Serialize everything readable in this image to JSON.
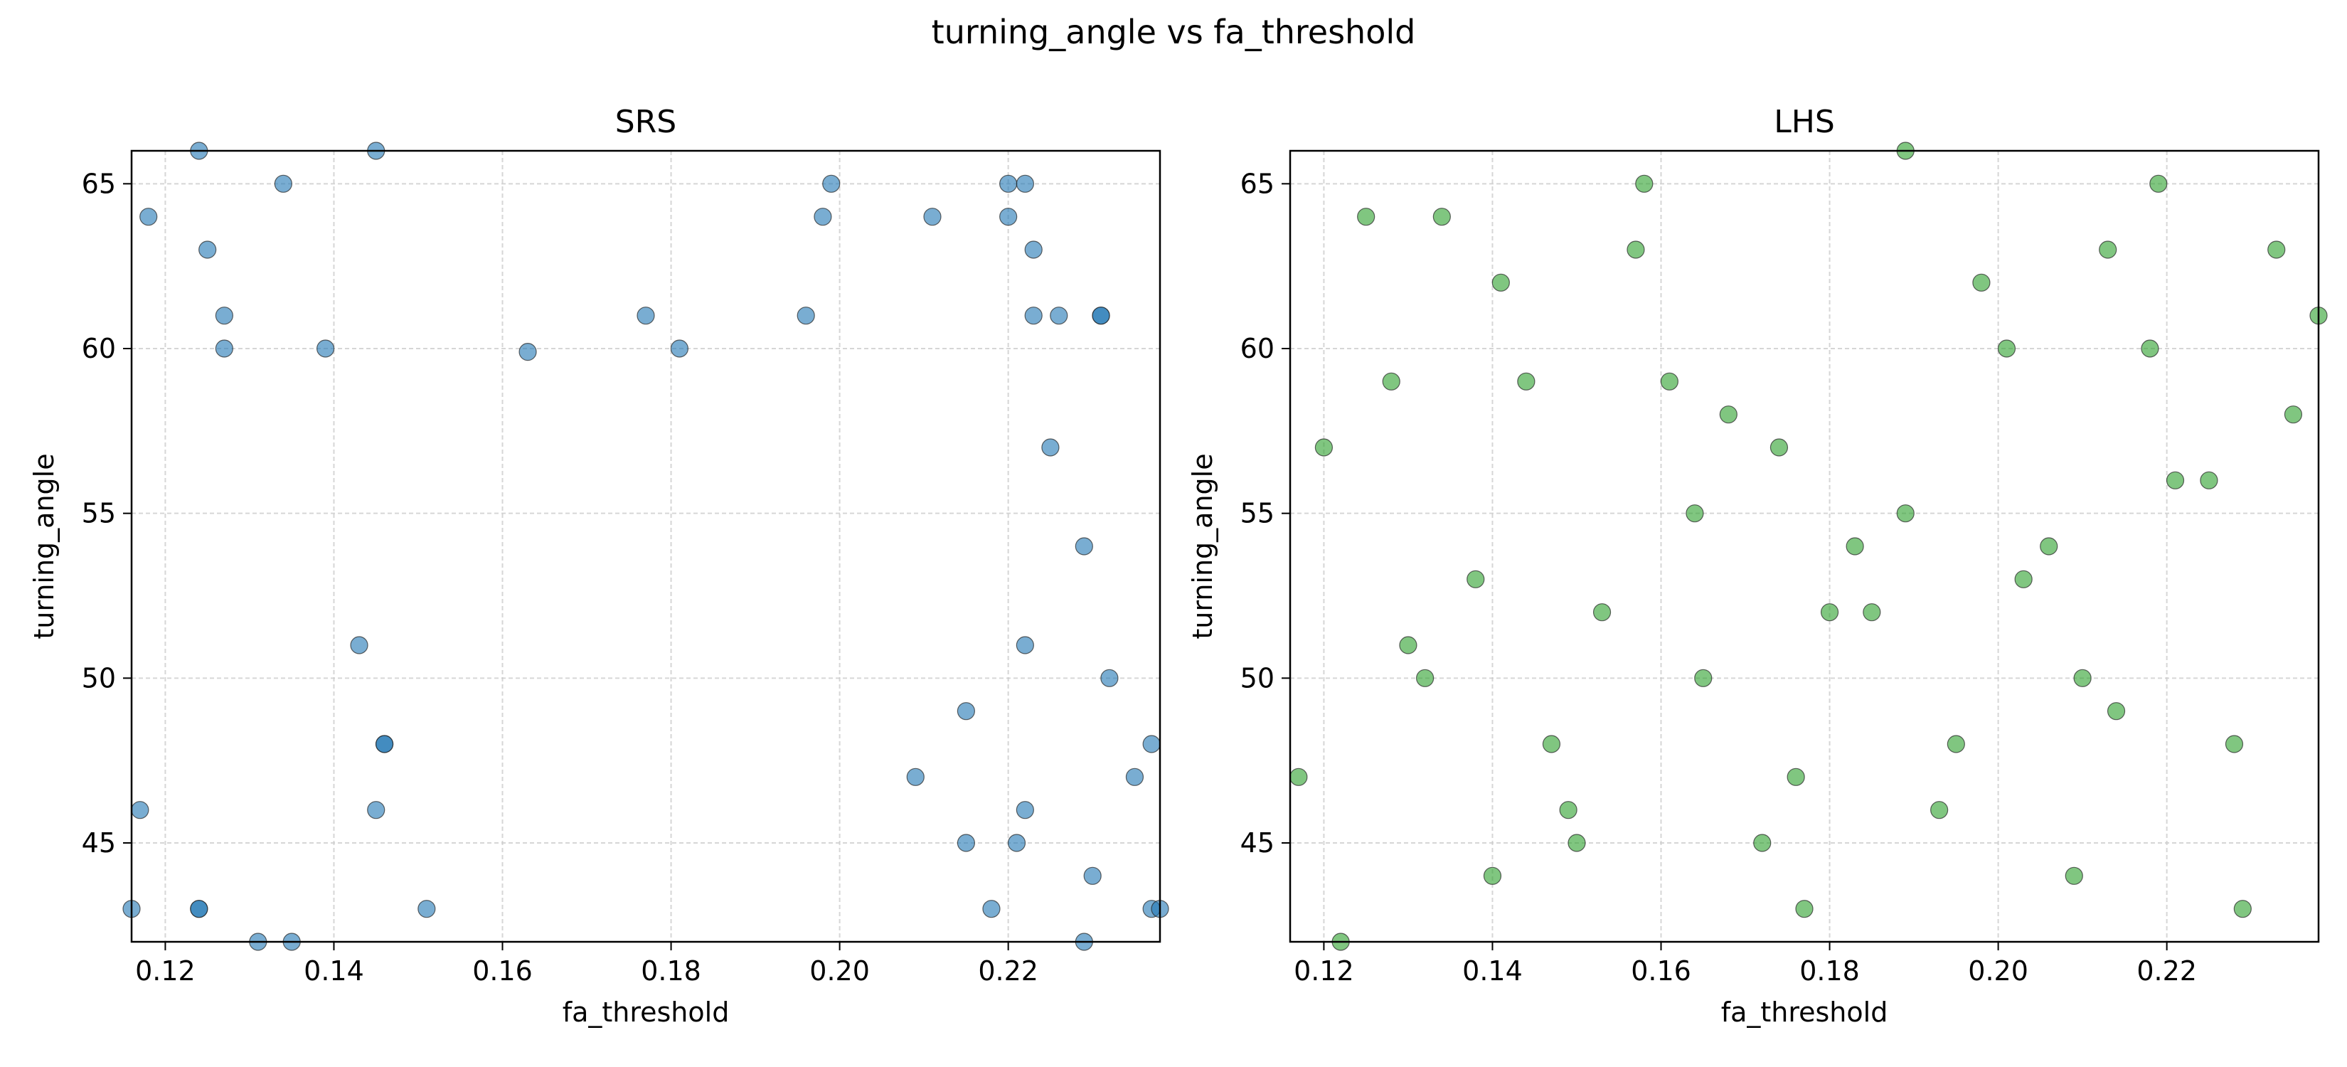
{
  "suptitle": "turning_angle vs fa_threshold",
  "chart_data": [
    {
      "type": "scatter",
      "title": "SRS",
      "xlabel": "fa_threshold",
      "ylabel": "turning_angle",
      "xlim": [
        0.116,
        0.238
      ],
      "ylim": [
        42.0,
        66.0
      ],
      "xticks": [
        0.12,
        0.14,
        0.16,
        0.18,
        0.2,
        0.22
      ],
      "xtick_labels": [
        "0.12",
        "0.14",
        "0.16",
        "0.18",
        "0.20",
        "0.22"
      ],
      "yticks": [
        45,
        50,
        55,
        60,
        65
      ],
      "ytick_labels": [
        "45",
        "50",
        "55",
        "60",
        "65"
      ],
      "grid": true,
      "color": "#1f77b4",
      "points": [
        [
          0.116,
          43.0
        ],
        [
          0.117,
          46.0
        ],
        [
          0.118,
          64.0
        ],
        [
          0.124,
          66.0
        ],
        [
          0.124,
          43.0
        ],
        [
          0.124,
          43.0
        ],
        [
          0.125,
          63.0
        ],
        [
          0.127,
          61.0
        ],
        [
          0.127,
          60.0
        ],
        [
          0.131,
          42.0
        ],
        [
          0.134,
          65.0
        ],
        [
          0.135,
          42.0
        ],
        [
          0.139,
          60.0
        ],
        [
          0.143,
          51.0
        ],
        [
          0.145,
          66.0
        ],
        [
          0.145,
          46.0
        ],
        [
          0.146,
          48.0
        ],
        [
          0.146,
          48.0
        ],
        [
          0.151,
          43.0
        ],
        [
          0.163,
          59.9
        ],
        [
          0.177,
          61.0
        ],
        [
          0.181,
          60.0
        ],
        [
          0.196,
          61.0
        ],
        [
          0.198,
          64.0
        ],
        [
          0.199,
          65.0
        ],
        [
          0.209,
          47.0
        ],
        [
          0.211,
          64.0
        ],
        [
          0.215,
          49.0
        ],
        [
          0.215,
          45.0
        ],
        [
          0.218,
          43.0
        ],
        [
          0.22,
          65.0
        ],
        [
          0.22,
          64.0
        ],
        [
          0.221,
          45.0
        ],
        [
          0.222,
          65.0
        ],
        [
          0.222,
          51.0
        ],
        [
          0.222,
          46.0
        ],
        [
          0.223,
          63.0
        ],
        [
          0.223,
          61.0
        ],
        [
          0.225,
          57.0
        ],
        [
          0.226,
          61.0
        ],
        [
          0.229,
          54.0
        ],
        [
          0.229,
          42.0
        ],
        [
          0.23,
          44.0
        ],
        [
          0.231,
          61.0
        ],
        [
          0.231,
          61.0
        ],
        [
          0.232,
          50.0
        ],
        [
          0.235,
          47.0
        ],
        [
          0.237,
          48.0
        ],
        [
          0.237,
          43.0
        ],
        [
          0.238,
          43.0
        ]
      ]
    },
    {
      "type": "scatter",
      "title": "LHS",
      "xlabel": "fa_threshold",
      "ylabel": "turning_angle",
      "xlim": [
        0.116,
        0.238
      ],
      "ylim": [
        42.0,
        66.0
      ],
      "xticks": [
        0.12,
        0.14,
        0.16,
        0.18,
        0.2,
        0.22
      ],
      "xtick_labels": [
        "0.12",
        "0.14",
        "0.16",
        "0.18",
        "0.20",
        "0.22"
      ],
      "yticks": [
        45,
        50,
        55,
        60,
        65
      ],
      "ytick_labels": [
        "45",
        "50",
        "55",
        "60",
        "65"
      ],
      "grid": true,
      "color": "#2ca02c",
      "points": [
        [
          0.117,
          47.0
        ],
        [
          0.12,
          57.0
        ],
        [
          0.122,
          42.0
        ],
        [
          0.125,
          64.0
        ],
        [
          0.128,
          59.0
        ],
        [
          0.13,
          51.0
        ],
        [
          0.132,
          50.0
        ],
        [
          0.134,
          64.0
        ],
        [
          0.138,
          53.0
        ],
        [
          0.14,
          44.0
        ],
        [
          0.141,
          62.0
        ],
        [
          0.144,
          59.0
        ],
        [
          0.147,
          48.0
        ],
        [
          0.149,
          46.0
        ],
        [
          0.15,
          45.0
        ],
        [
          0.153,
          52.0
        ],
        [
          0.157,
          63.0
        ],
        [
          0.158,
          65.0
        ],
        [
          0.161,
          59.0
        ],
        [
          0.164,
          55.0
        ],
        [
          0.165,
          50.0
        ],
        [
          0.168,
          58.0
        ],
        [
          0.172,
          45.0
        ],
        [
          0.174,
          57.0
        ],
        [
          0.176,
          47.0
        ],
        [
          0.177,
          43.0
        ],
        [
          0.18,
          52.0
        ],
        [
          0.183,
          54.0
        ],
        [
          0.185,
          52.0
        ],
        [
          0.189,
          66.0
        ],
        [
          0.189,
          55.0
        ],
        [
          0.193,
          46.0
        ],
        [
          0.195,
          48.0
        ],
        [
          0.198,
          62.0
        ],
        [
          0.201,
          60.0
        ],
        [
          0.203,
          53.0
        ],
        [
          0.206,
          54.0
        ],
        [
          0.209,
          44.0
        ],
        [
          0.21,
          50.0
        ],
        [
          0.213,
          63.0
        ],
        [
          0.214,
          49.0
        ],
        [
          0.218,
          60.0
        ],
        [
          0.219,
          65.0
        ],
        [
          0.221,
          56.0
        ],
        [
          0.225,
          56.0
        ],
        [
          0.228,
          48.0
        ],
        [
          0.229,
          43.0
        ],
        [
          0.233,
          63.0
        ],
        [
          0.235,
          58.0
        ],
        [
          0.238,
          61.0
        ]
      ]
    }
  ]
}
